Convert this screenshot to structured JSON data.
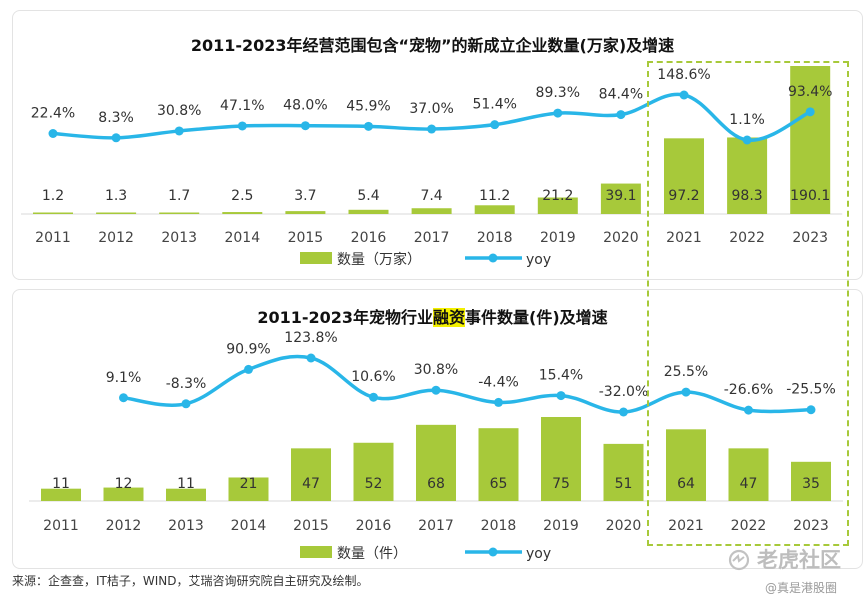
{
  "chart_data": [
    {
      "type": "bar",
      "title": "2011-2023年经营范围包含“宠物”的新成立企业数量(万家)及增速",
      "categories": [
        "2011",
        "2012",
        "2013",
        "2014",
        "2015",
        "2016",
        "2017",
        "2018",
        "2019",
        "2020",
        "2021",
        "2022",
        "2023"
      ],
      "series": [
        {
          "name": "数量（万家）",
          "type": "bar",
          "color": "#a7c93a",
          "values": [
            1.2,
            1.3,
            1.7,
            2.5,
            3.7,
            5.4,
            7.4,
            11.2,
            21.2,
            39.1,
            97.2,
            98.3,
            190.1
          ],
          "labels": [
            "1.2",
            "1.3",
            "1.7",
            "2.5",
            "3.7",
            "5.4",
            "7.4",
            "11.2",
            "21.2",
            "39.1",
            "97.2",
            "98.3",
            "190.1"
          ]
        },
        {
          "name": "yoy",
          "type": "line",
          "color": "#29b6e8",
          "values": [
            22.4,
            8.3,
            30.8,
            47.1,
            48.0,
            45.9,
            37.0,
            51.4,
            89.3,
            84.4,
            148.6,
            1.1,
            93.4
          ],
          "labels": [
            "22.4%",
            "8.3%",
            "30.8%",
            "47.1%",
            "48.0%",
            "45.9%",
            "37.0%",
            "51.4%",
            "89.3%",
            "84.4%",
            "148.6%",
            "1.1%",
            "93.4%"
          ]
        }
      ],
      "legend_position": "bottom"
    },
    {
      "type": "bar",
      "title_parts": [
        "2011-2023年宠物行业",
        "融资",
        "事件数量(件)及增速"
      ],
      "categories": [
        "2011",
        "2012",
        "2013",
        "2014",
        "2015",
        "2016",
        "2017",
        "2018",
        "2019",
        "2020",
        "2021",
        "2022",
        "2023"
      ],
      "series": [
        {
          "name": "数量（件）",
          "type": "bar",
          "color": "#a7c93a",
          "values": [
            11,
            12,
            11,
            21,
            47,
            52,
            68,
            65,
            75,
            51,
            64,
            47,
            35
          ],
          "labels": [
            "11",
            "12",
            "11",
            "21",
            "47",
            "52",
            "68",
            "65",
            "75",
            "51",
            "64",
            "47",
            "35"
          ]
        },
        {
          "name": "yoy",
          "type": "line",
          "color": "#29b6e8",
          "values": [
            null,
            9.1,
            -8.3,
            90.9,
            123.8,
            10.6,
            30.8,
            -4.4,
            15.4,
            -32.0,
            25.5,
            -26.6,
            -25.5
          ],
          "labels": [
            "",
            "9.1%",
            "-8.3%",
            "90.9%",
            "123.8%",
            "10.6%",
            "30.8%",
            "-4.4%",
            "15.4%",
            "-32.0%",
            "25.5%",
            "-26.6%",
            "-25.5%"
          ]
        }
      ],
      "legend_position": "bottom"
    }
  ],
  "source": "来源：企查查，IT桔子，WIND，艾瑞咨询研究院自主研究及绘制。",
  "watermark": {
    "brand": "老虎社区",
    "handle": "@真是港股圈"
  }
}
